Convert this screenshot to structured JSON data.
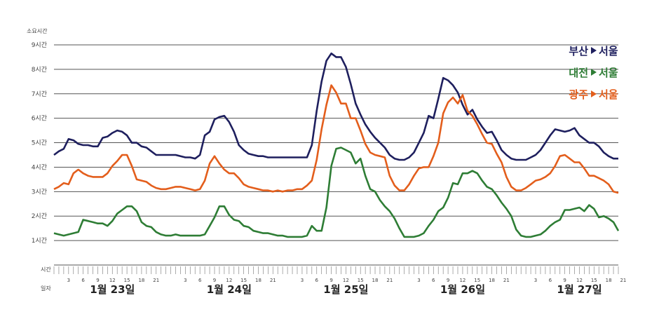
{
  "chart_data": {
    "type": "line",
    "ylabel": "소요시간",
    "xlabel_hour": "시간",
    "xlabel_day": "일자",
    "ylim": [
      0,
      9
    ],
    "yticks": [
      "1시간",
      "2시간",
      "3시간",
      "4시간",
      "5시간",
      "6시간",
      "7시간",
      "8시간",
      "9시간"
    ],
    "days": [
      "1월 23일",
      "1월 24일",
      "1월 25일",
      "1월 26일",
      "1월 27일"
    ],
    "hour_ticks": [
      "3",
      "6",
      "9",
      "12",
      "15",
      "18",
      "21"
    ],
    "x_hours_per_day": 24,
    "series": [
      {
        "name": "부산",
        "to": "서울",
        "color": "#1e1f5e",
        "values": [
          4.5,
          4.65,
          4.75,
          5.15,
          5.1,
          4.95,
          4.9,
          4.9,
          4.85,
          4.85,
          5.2,
          5.25,
          5.4,
          5.5,
          5.45,
          5.3,
          5.0,
          5.0,
          4.85,
          4.8,
          4.65,
          4.5,
          4.5,
          4.5,
          4.5,
          4.5,
          4.45,
          4.4,
          4.4,
          4.35,
          4.5,
          5.3,
          5.45,
          5.95,
          6.05,
          6.1,
          5.85,
          5.45,
          4.9,
          4.7,
          4.55,
          4.5,
          4.45,
          4.45,
          4.4,
          4.4,
          4.4,
          4.4,
          4.4,
          4.4,
          4.4,
          4.4,
          4.4,
          4.9,
          6.3,
          7.5,
          8.35,
          8.65,
          8.5,
          8.5,
          8.1,
          7.4,
          6.6,
          6.15,
          5.75,
          5.45,
          5.2,
          5.0,
          4.8,
          4.5,
          4.35,
          4.3,
          4.3,
          4.4,
          4.6,
          5.0,
          5.4,
          6.1,
          6.0,
          6.8,
          7.65,
          7.55,
          7.35,
          7.05,
          6.55,
          6.15,
          6.35,
          5.95,
          5.65,
          5.4,
          5.45,
          5.1,
          4.7,
          4.5,
          4.35,
          4.3,
          4.3,
          4.3,
          4.4,
          4.5,
          4.7,
          5.0,
          5.3,
          5.55,
          5.5,
          5.45,
          5.5,
          5.6,
          5.3,
          5.15,
          5.0,
          5.0,
          4.85,
          4.6,
          4.45,
          4.35,
          4.35
        ]
      },
      {
        "name": "대전",
        "to": "서울",
        "color": "#2e7d35",
        "values": [
          1.3,
          1.25,
          1.2,
          1.25,
          1.3,
          1.35,
          1.85,
          1.8,
          1.75,
          1.7,
          1.7,
          1.6,
          1.8,
          2.1,
          2.25,
          2.4,
          2.4,
          2.2,
          1.75,
          1.6,
          1.55,
          1.35,
          1.25,
          1.2,
          1.2,
          1.25,
          1.2,
          1.2,
          1.2,
          1.2,
          1.2,
          1.25,
          1.6,
          1.95,
          2.4,
          2.4,
          2.05,
          1.85,
          1.8,
          1.6,
          1.55,
          1.4,
          1.35,
          1.3,
          1.3,
          1.25,
          1.2,
          1.2,
          1.15,
          1.15,
          1.15,
          1.15,
          1.2,
          1.6,
          1.4,
          1.4,
          2.35,
          4.05,
          4.75,
          4.8,
          4.7,
          4.6,
          4.15,
          4.35,
          3.65,
          3.1,
          3.0,
          2.65,
          2.4,
          2.2,
          1.9,
          1.5,
          1.15,
          1.15,
          1.15,
          1.2,
          1.3,
          1.6,
          1.85,
          2.2,
          2.35,
          2.75,
          3.35,
          3.3,
          3.75,
          3.75,
          3.85,
          3.75,
          3.45,
          3.2,
          3.1,
          2.85,
          2.55,
          2.3,
          2.0,
          1.45,
          1.2,
          1.15,
          1.15,
          1.2,
          1.25,
          1.4,
          1.6,
          1.75,
          1.85,
          2.25,
          2.25,
          2.3,
          2.35,
          2.2,
          2.45,
          2.3,
          1.95,
          2.0,
          1.9,
          1.75,
          1.4
        ]
      },
      {
        "name": "광주",
        "to": "서울",
        "color": "#e35e1c",
        "values": [
          3.1,
          3.2,
          3.35,
          3.3,
          3.75,
          3.9,
          3.75,
          3.65,
          3.6,
          3.6,
          3.6,
          3.75,
          4.05,
          4.25,
          4.5,
          4.5,
          4.05,
          3.5,
          3.45,
          3.4,
          3.25,
          3.15,
          3.1,
          3.1,
          3.15,
          3.2,
          3.2,
          3.15,
          3.1,
          3.05,
          3.1,
          3.45,
          4.15,
          4.45,
          4.15,
          3.9,
          3.75,
          3.75,
          3.55,
          3.3,
          3.2,
          3.15,
          3.1,
          3.05,
          3.05,
          3.0,
          3.05,
          3.0,
          3.05,
          3.05,
          3.1,
          3.1,
          3.25,
          3.45,
          4.3,
          5.55,
          6.55,
          7.35,
          7.05,
          6.6,
          6.6,
          6.0,
          6.0,
          5.5,
          4.95,
          4.6,
          4.5,
          4.45,
          4.4,
          3.65,
          3.25,
          3.05,
          3.05,
          3.3,
          3.65,
          3.95,
          4.0,
          4.0,
          4.45,
          5.0,
          6.2,
          6.65,
          6.85,
          6.6,
          6.95,
          6.3,
          6.1,
          5.75,
          5.35,
          5.0,
          4.95,
          4.55,
          4.2,
          3.6,
          3.2,
          3.05,
          3.05,
          3.15,
          3.3,
          3.45,
          3.5,
          3.6,
          3.75,
          4.05,
          4.45,
          4.5,
          4.35,
          4.2,
          4.2,
          3.95,
          3.65,
          3.65,
          3.55,
          3.45,
          3.3,
          3.0,
          2.95
        ]
      }
    ]
  }
}
